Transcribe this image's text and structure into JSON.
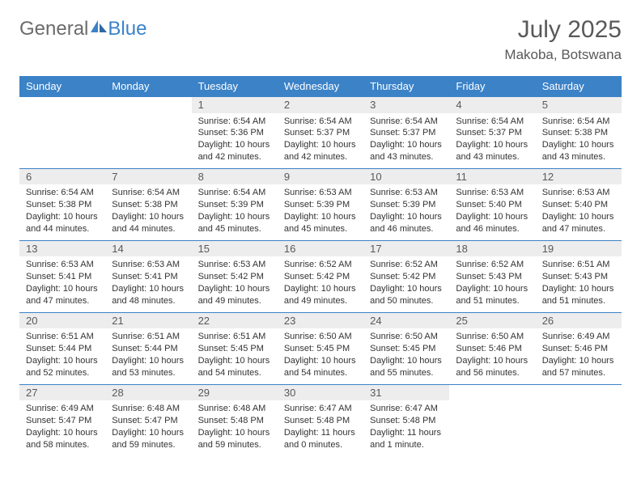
{
  "logo": {
    "text1": "General",
    "text2": "Blue"
  },
  "title": "July 2025",
  "location": "Makoba, Botswana",
  "colors": {
    "header_bg": "#3b82c7",
    "header_fg": "#ffffff",
    "daynum_bg": "#ededed",
    "rule": "#3b82c7",
    "text": "#333333",
    "muted": "#595959"
  },
  "weekdays": [
    "Sunday",
    "Monday",
    "Tuesday",
    "Wednesday",
    "Thursday",
    "Friday",
    "Saturday"
  ],
  "weeks": [
    [
      null,
      null,
      {
        "n": "1",
        "sr": "6:54 AM",
        "ss": "5:36 PM",
        "dl": "10 hours and 42 minutes."
      },
      {
        "n": "2",
        "sr": "6:54 AM",
        "ss": "5:37 PM",
        "dl": "10 hours and 42 minutes."
      },
      {
        "n": "3",
        "sr": "6:54 AM",
        "ss": "5:37 PM",
        "dl": "10 hours and 43 minutes."
      },
      {
        "n": "4",
        "sr": "6:54 AM",
        "ss": "5:37 PM",
        "dl": "10 hours and 43 minutes."
      },
      {
        "n": "5",
        "sr": "6:54 AM",
        "ss": "5:38 PM",
        "dl": "10 hours and 43 minutes."
      }
    ],
    [
      {
        "n": "6",
        "sr": "6:54 AM",
        "ss": "5:38 PM",
        "dl": "10 hours and 44 minutes."
      },
      {
        "n": "7",
        "sr": "6:54 AM",
        "ss": "5:38 PM",
        "dl": "10 hours and 44 minutes."
      },
      {
        "n": "8",
        "sr": "6:54 AM",
        "ss": "5:39 PM",
        "dl": "10 hours and 45 minutes."
      },
      {
        "n": "9",
        "sr": "6:53 AM",
        "ss": "5:39 PM",
        "dl": "10 hours and 45 minutes."
      },
      {
        "n": "10",
        "sr": "6:53 AM",
        "ss": "5:39 PM",
        "dl": "10 hours and 46 minutes."
      },
      {
        "n": "11",
        "sr": "6:53 AM",
        "ss": "5:40 PM",
        "dl": "10 hours and 46 minutes."
      },
      {
        "n": "12",
        "sr": "6:53 AM",
        "ss": "5:40 PM",
        "dl": "10 hours and 47 minutes."
      }
    ],
    [
      {
        "n": "13",
        "sr": "6:53 AM",
        "ss": "5:41 PM",
        "dl": "10 hours and 47 minutes."
      },
      {
        "n": "14",
        "sr": "6:53 AM",
        "ss": "5:41 PM",
        "dl": "10 hours and 48 minutes."
      },
      {
        "n": "15",
        "sr": "6:53 AM",
        "ss": "5:42 PM",
        "dl": "10 hours and 49 minutes."
      },
      {
        "n": "16",
        "sr": "6:52 AM",
        "ss": "5:42 PM",
        "dl": "10 hours and 49 minutes."
      },
      {
        "n": "17",
        "sr": "6:52 AM",
        "ss": "5:42 PM",
        "dl": "10 hours and 50 minutes."
      },
      {
        "n": "18",
        "sr": "6:52 AM",
        "ss": "5:43 PM",
        "dl": "10 hours and 51 minutes."
      },
      {
        "n": "19",
        "sr": "6:51 AM",
        "ss": "5:43 PM",
        "dl": "10 hours and 51 minutes."
      }
    ],
    [
      {
        "n": "20",
        "sr": "6:51 AM",
        "ss": "5:44 PM",
        "dl": "10 hours and 52 minutes."
      },
      {
        "n": "21",
        "sr": "6:51 AM",
        "ss": "5:44 PM",
        "dl": "10 hours and 53 minutes."
      },
      {
        "n": "22",
        "sr": "6:51 AM",
        "ss": "5:45 PM",
        "dl": "10 hours and 54 minutes."
      },
      {
        "n": "23",
        "sr": "6:50 AM",
        "ss": "5:45 PM",
        "dl": "10 hours and 54 minutes."
      },
      {
        "n": "24",
        "sr": "6:50 AM",
        "ss": "5:45 PM",
        "dl": "10 hours and 55 minutes."
      },
      {
        "n": "25",
        "sr": "6:50 AM",
        "ss": "5:46 PM",
        "dl": "10 hours and 56 minutes."
      },
      {
        "n": "26",
        "sr": "6:49 AM",
        "ss": "5:46 PM",
        "dl": "10 hours and 57 minutes."
      }
    ],
    [
      {
        "n": "27",
        "sr": "6:49 AM",
        "ss": "5:47 PM",
        "dl": "10 hours and 58 minutes."
      },
      {
        "n": "28",
        "sr": "6:48 AM",
        "ss": "5:47 PM",
        "dl": "10 hours and 59 minutes."
      },
      {
        "n": "29",
        "sr": "6:48 AM",
        "ss": "5:48 PM",
        "dl": "10 hours and 59 minutes."
      },
      {
        "n": "30",
        "sr": "6:47 AM",
        "ss": "5:48 PM",
        "dl": "11 hours and 0 minutes."
      },
      {
        "n": "31",
        "sr": "6:47 AM",
        "ss": "5:48 PM",
        "dl": "11 hours and 1 minute."
      },
      null,
      null
    ]
  ],
  "labels": {
    "sunrise": "Sunrise: ",
    "sunset": "Sunset: ",
    "daylight": "Daylight: "
  }
}
